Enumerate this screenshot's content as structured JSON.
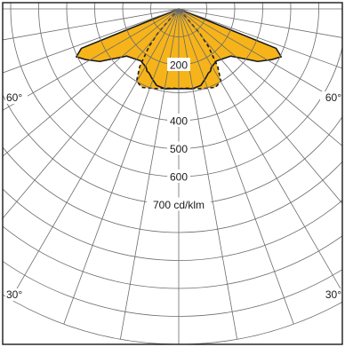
{
  "chart_data": {
    "type": "polar-photometric",
    "title": "",
    "radial_unit": "cd/klm",
    "radial_axis_label": "700 cd/klm",
    "radial_ticks": [
      {
        "value": 200,
        "label": "200"
      },
      {
        "value": 400,
        "label": "400"
      },
      {
        "value": 500,
        "label": "500"
      },
      {
        "value": 600,
        "label": "600"
      },
      {
        "value": 700,
        "label": "700 cd/klm"
      }
    ],
    "angle_labels": [
      {
        "angle": -60,
        "label": "60°"
      },
      {
        "angle": 60,
        "label": "60°"
      },
      {
        "angle": -30,
        "label": "30°"
      },
      {
        "angle": 30,
        "label": "30°"
      }
    ],
    "radial_grid_max": 1200,
    "angle_grid_step_deg": 10,
    "series": [
      {
        "style": "solid",
        "fill": "#f6b41a",
        "stroke": "#1a1a1a",
        "points": [
          {
            "angle": -67.9,
            "value": 375
          },
          {
            "angle": -64.9,
            "value": 404
          },
          {
            "angle": -61.3,
            "value": 378
          },
          {
            "angle": -56.3,
            "value": 339
          },
          {
            "angle": -47.7,
            "value": 251
          },
          {
            "angle": -36.0,
            "value": 230
          },
          {
            "angle": -29.2,
            "value": 239
          },
          {
            "angle": -26.9,
            "value": 250
          },
          {
            "angle": -24.7,
            "value": 253
          },
          {
            "angle": -20.9,
            "value": 267
          },
          {
            "angle": -16.1,
            "value": 285
          },
          {
            "angle": -9.5,
            "value": 290
          },
          {
            "angle": 0.0,
            "value": 285
          },
          {
            "angle": 9.5,
            "value": 290
          },
          {
            "angle": 16.1,
            "value": 285
          },
          {
            "angle": 20.9,
            "value": 267
          },
          {
            "angle": 24.7,
            "value": 253
          },
          {
            "angle": 26.9,
            "value": 250
          },
          {
            "angle": 29.2,
            "value": 239
          },
          {
            "angle": 36.0,
            "value": 230
          },
          {
            "angle": 47.7,
            "value": 251
          },
          {
            "angle": 56.3,
            "value": 339
          },
          {
            "angle": 61.3,
            "value": 378
          },
          {
            "angle": 64.9,
            "value": 404
          },
          {
            "angle": 67.9,
            "value": 375
          }
        ]
      },
      {
        "style": "dashed",
        "fill": "#f6b41a",
        "stroke": "#1a1a1a",
        "points": [
          {
            "angle": -40.5,
            "value": 118
          },
          {
            "angle": -38.2,
            "value": 171
          },
          {
            "angle": -34.0,
            "value": 249
          },
          {
            "angle": -30.2,
            "value": 299
          },
          {
            "angle": -25.1,
            "value": 310
          },
          {
            "angle": -16.1,
            "value": 297
          },
          {
            "angle": -5.3,
            "value": 285
          },
          {
            "angle": 0.0,
            "value": 285
          },
          {
            "angle": 5.3,
            "value": 285
          },
          {
            "angle": 16.1,
            "value": 297
          },
          {
            "angle": 25.1,
            "value": 310
          },
          {
            "angle": 30.2,
            "value": 299
          },
          {
            "angle": 34.0,
            "value": 249
          },
          {
            "angle": 38.2,
            "value": 171
          },
          {
            "angle": 40.5,
            "value": 118
          }
        ]
      }
    ]
  }
}
